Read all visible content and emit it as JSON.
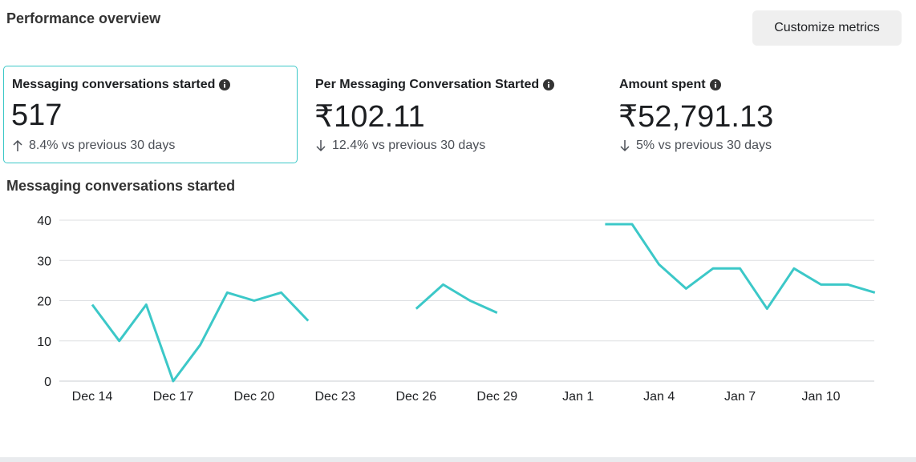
{
  "header": {
    "title": "Performance overview",
    "customize_label": "Customize metrics"
  },
  "metrics": [
    {
      "label": "Messaging conversations started",
      "value": "517",
      "change": "8.4% vs previous 30 days",
      "direction": "up",
      "info_icon": "info-icon",
      "selected": true
    },
    {
      "label": "Per Messaging Conversation Started",
      "value": "₹102.11",
      "change": "12.4% vs previous 30 days",
      "direction": "down",
      "info_icon": "info-icon",
      "selected": false
    },
    {
      "label": "Amount spent",
      "value": "₹52,791.13",
      "change": "5% vs previous 30 days",
      "direction": "down",
      "info_icon": "info-icon",
      "selected": false
    }
  ],
  "chart": {
    "title": "Messaging conversations started"
  },
  "chart_data": {
    "type": "line",
    "title": "Messaging conversations started",
    "xlabel": "",
    "ylabel": "",
    "ylim": [
      0,
      40
    ],
    "yticks": [
      0,
      10,
      20,
      30,
      40
    ],
    "grid": true,
    "line_color": "#3cc8c8",
    "x": [
      "Dec 14",
      "Dec 15",
      "Dec 16",
      "Dec 17",
      "Dec 18",
      "Dec 19",
      "Dec 20",
      "Dec 21",
      "Dec 22",
      "Dec 23",
      "Dec 24",
      "Dec 25",
      "Dec 26",
      "Dec 27",
      "Dec 28",
      "Dec 29",
      "Dec 30",
      "Dec 31",
      "Jan 1",
      "Jan 2",
      "Jan 3",
      "Jan 4",
      "Jan 5",
      "Jan 6",
      "Jan 7",
      "Jan 8",
      "Jan 9",
      "Jan 10",
      "Jan 11",
      "Jan 12"
    ],
    "xtick_labels": [
      "Dec 14",
      "Dec 17",
      "Dec 20",
      "Dec 23",
      "Dec 26",
      "Dec 29",
      "Jan 1",
      "Jan 4",
      "Jan 7",
      "Jan 10"
    ],
    "series": [
      {
        "values": [
          19,
          10,
          19,
          0,
          9,
          22,
          20,
          22,
          15,
          null,
          null,
          null,
          18,
          24,
          20,
          17,
          null,
          null,
          null,
          39,
          39,
          29,
          23,
          28,
          28,
          18,
          28,
          24,
          24,
          22
        ]
      }
    ]
  }
}
